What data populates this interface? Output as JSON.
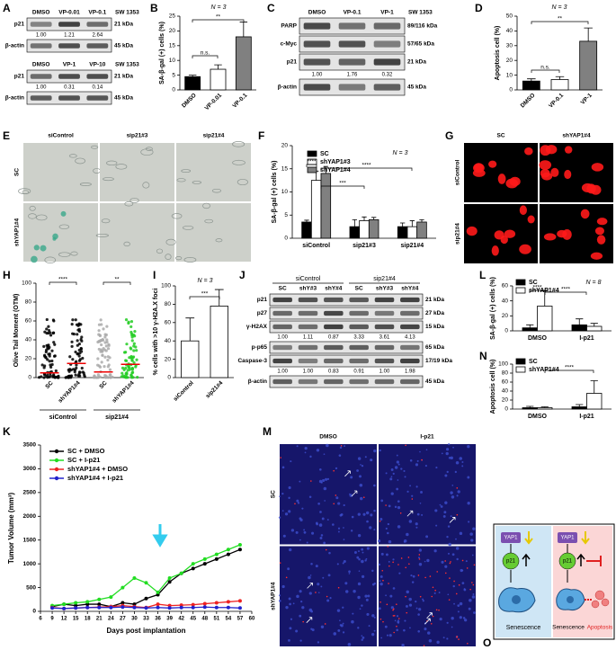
{
  "panel_a": {
    "letter": "A",
    "blots": [
      {
        "lanes": [
          "DMSO",
          "VP-0.01",
          "VP-0.1"
        ],
        "cell_line": "SW 1353",
        "rows": [
          {
            "name": "p21",
            "kda": "21 kDa",
            "quant": [
              "1.00",
              "1.21",
              "2.64"
            ]
          },
          {
            "name": "β-actin",
            "kda": "45 kDa"
          }
        ]
      },
      {
        "lanes": [
          "DMSO",
          "VP-1",
          "VP-10"
        ],
        "cell_line": "SW 1353",
        "rows": [
          {
            "name": "p21",
            "kda": "21 kDa",
            "quant": [
              "1.00",
              "0.31",
              "0.14"
            ]
          },
          {
            "name": "β-actin",
            "kda": "45 kDa"
          }
        ]
      }
    ]
  },
  "panel_b": {
    "letter": "B",
    "type": "bar",
    "note": "N = 3",
    "ylabel": "SA-β-gal (+) cells (%)",
    "categories": [
      "DMSO",
      "VP-0.01",
      "VP-0.1"
    ],
    "values": [
      4.5,
      7,
      18
    ],
    "errors": [
      0.5,
      1.5,
      5
    ],
    "colors": [
      "#000000",
      "#ffffff",
      "#808080"
    ],
    "ylim": [
      0,
      25
    ],
    "yticks": [
      0,
      5,
      10,
      15,
      20,
      25
    ],
    "annotations": [
      "n.s.",
      "**"
    ]
  },
  "panel_c": {
    "letter": "C",
    "blots": [
      {
        "lanes": [
          "DMSO",
          "VP-0.1",
          "VP-1"
        ],
        "cell_line": "SW 1353",
        "rows": [
          {
            "name": "PARP",
            "kda": "89/116 kDa"
          },
          {
            "name": "c-Myc",
            "kda": "57/65 kDa"
          },
          {
            "name": "p21",
            "kda": "21 kDa",
            "quant": [
              "1.00",
              "1.76",
              "0.32"
            ]
          },
          {
            "name": "β-actin",
            "kda": "45 kDa"
          }
        ]
      }
    ]
  },
  "panel_d": {
    "letter": "D",
    "type": "bar",
    "note": "N = 3",
    "ylabel": "Apoptosis cell (%)",
    "categories": [
      "DMSO",
      "VP-0.1",
      "VP-1"
    ],
    "values": [
      6,
      7,
      33
    ],
    "errors": [
      1.5,
      2,
      9
    ],
    "colors": [
      "#000000",
      "#ffffff",
      "#808080"
    ],
    "ylim": [
      0,
      50
    ],
    "yticks": [
      0,
      10,
      20,
      30,
      40,
      50
    ],
    "annotations": [
      "n.s.",
      "**"
    ]
  },
  "panel_e": {
    "letter": "E",
    "columns": [
      "siControl",
      "sip21#3",
      "sip21#4"
    ],
    "rows": [
      "SC",
      "shYAP1#4"
    ]
  },
  "panel_f": {
    "letter": "F",
    "type": "bar",
    "note": "N = 3",
    "ylabel": "SA-β-gal (+) cells (%)",
    "categories": [
      "siControl",
      "sip21#3",
      "sip21#4"
    ],
    "series": [
      {
        "name": "SC",
        "color": "#000000",
        "values": [
          3.5,
          2.5,
          2.5
        ],
        "errors": [
          0.4,
          1.5,
          0.8
        ]
      },
      {
        "name": "shYAP1#3",
        "color": "#ffffff",
        "values": [
          12.5,
          3.8,
          2.5
        ],
        "errors": [
          2,
          0.8,
          1.3
        ]
      },
      {
        "name": "shYAP1#4",
        "color": "#808080",
        "values": [
          14,
          4,
          3.5
        ],
        "errors": [
          1.5,
          0.5,
          0.5
        ]
      }
    ],
    "ylim": [
      0,
      20
    ],
    "yticks": [
      0,
      5,
      10,
      15,
      20
    ],
    "annotations": [
      "****",
      "***",
      "****"
    ]
  },
  "panel_g": {
    "letter": "G",
    "columns": [
      "SC",
      "shYAP1#4"
    ],
    "rows": [
      "siControl",
      "sip21#4"
    ]
  },
  "panel_h": {
    "letter": "H",
    "type": "dot_plot",
    "ylabel": "Olive Tail Moment (OTM)",
    "categories": [
      "SC",
      "shYAP1#4",
      "SC",
      "shYAP1#4"
    ],
    "groups": [
      "siControl",
      "sip21#4"
    ],
    "values": [
      5,
      15,
      6,
      14
    ],
    "colors": [
      "#000000",
      "#000000",
      "#aaaaaa",
      "#22cc22"
    ],
    "ylim": [
      0,
      100
    ],
    "yticks": [
      0,
      20,
      40,
      60,
      80,
      100
    ],
    "annotations": [
      "****",
      "**"
    ]
  },
  "panel_i": {
    "letter": "I",
    "type": "bar",
    "note": "N = 3",
    "ylabel": "% cells with >10 γ-H2A.X foci",
    "categories": [
      "siControl",
      "sip21#4"
    ],
    "values": [
      40,
      78
    ],
    "errors": [
      25,
      18
    ],
    "colors": [
      "#ffffff",
      "#ffffff"
    ],
    "ylim": [
      0,
      100
    ],
    "yticks": [
      0,
      20,
      40,
      60,
      80,
      100
    ],
    "annotations": [
      "***"
    ]
  },
  "panel_j": {
    "letter": "J",
    "blots": [
      {
        "groups": [
          "siControl",
          "sip21#4"
        ],
        "lanes": [
          "SC",
          "shY#3",
          "shY#4",
          "SC",
          "shY#3",
          "shY#4"
        ],
        "rows": [
          {
            "name": "p21",
            "kda": "21 kDa"
          },
          {
            "name": "p27",
            "kda": "27 kDa"
          },
          {
            "name": "γ-H2AX",
            "kda": "15 kDa",
            "quant": [
              "1.00",
              "1.11",
              "0.87",
              "3.33",
              "3.61",
              "4.13"
            ]
          },
          {
            "name": "p-p65",
            "kda": "65 kDa"
          },
          {
            "name": "Caspase-3",
            "kda": "17/19 kDa",
            "quant": [
              "1.00",
              "1.00",
              "0.83",
              "0.91",
              "1.00",
              "1.98"
            ]
          },
          {
            "name": "β-actin",
            "kda": "45 kDa"
          }
        ]
      }
    ]
  },
  "panel_k": {
    "letter": "K",
    "type": "line",
    "ylabel": "Tumor Volume (mm³)",
    "xlabel": "Days post implantation",
    "x": [
      9,
      12,
      15,
      18,
      21,
      24,
      27,
      30,
      33,
      36,
      39,
      42,
      45,
      48,
      51,
      54,
      57
    ],
    "series": [
      {
        "name": "SC + DMSO",
        "color": "#000000",
        "values": [
          100,
          150,
          120,
          150,
          150,
          100,
          180,
          150,
          270,
          350,
          620,
          800,
          900,
          1000,
          1100,
          1200,
          1300
        ]
      },
      {
        "name": "SC + I-p21",
        "color": "#22dd22",
        "values": [
          120,
          150,
          180,
          200,
          250,
          300,
          500,
          700,
          600,
          400,
          700,
          800,
          1000,
          1100,
          1200,
          1300,
          1400
        ]
      },
      {
        "name": "shYAP1#4 + DMSO",
        "color": "#ee2222",
        "values": [
          80,
          60,
          70,
          80,
          90,
          100,
          120,
          100,
          80,
          150,
          120,
          130,
          140,
          160,
          180,
          200,
          220
        ]
      },
      {
        "name": "shYAP1#4 + I-p21",
        "color": "#2222cc",
        "values": [
          70,
          60,
          70,
          80,
          80,
          80,
          90,
          80,
          70,
          80,
          70,
          80,
          80,
          90,
          80,
          80,
          70
        ]
      }
    ],
    "xlim": [
      6,
      60
    ],
    "xticks": [
      6,
      9,
      12,
      15,
      18,
      21,
      24,
      27,
      30,
      33,
      36,
      39,
      42,
      45,
      48,
      51,
      54,
      57,
      60
    ],
    "ylim": [
      0,
      3500
    ],
    "yticks": [
      0,
      500,
      1000,
      1500,
      2000,
      2500,
      3000,
      3500
    ]
  },
  "panel_l": {
    "letter": "L",
    "type": "bar",
    "note": "N = 8",
    "ylabel": "SA-β-gal (+) cells (%)",
    "categories": [
      "DMSO",
      "I-p21"
    ],
    "series": [
      {
        "name": "SC",
        "color": "#000000",
        "values": [
          4,
          8
        ],
        "errors": [
          4,
          8
        ]
      },
      {
        "name": "shYAP1#4",
        "color": "#ffffff",
        "values": [
          33,
          6
        ],
        "errors": [
          20,
          4
        ]
      }
    ],
    "ylim": [
      0,
      60
    ],
    "yticks": [
      0,
      20,
      40,
      60
    ],
    "annotations": [
      "****",
      "****"
    ]
  },
  "panel_m": {
    "letter": "M",
    "columns": [
      "DMSO",
      "I-p21"
    ],
    "rows": [
      "SC",
      "shYAP1#4"
    ]
  },
  "panel_n": {
    "letter": "N",
    "type": "bar",
    "ylabel": "Apoptosis cell (%)",
    "categories": [
      "DMSO",
      "I-p21"
    ],
    "series": [
      {
        "name": "SC",
        "color": "#000000",
        "values": [
          3,
          5
        ],
        "errors": [
          3,
          5
        ]
      },
      {
        "name": "shYAP1#4",
        "color": "#ffffff",
        "values": [
          3,
          35
        ],
        "errors": [
          2,
          28
        ]
      }
    ],
    "ylim": [
      0,
      100
    ],
    "yticks": [
      0,
      20,
      40,
      60,
      80,
      100
    ],
    "annotations": [
      "****"
    ]
  },
  "panel_o": {
    "letter": "O",
    "left": {
      "protein": "YAP1",
      "target": "p21",
      "outcome": "Senescence"
    },
    "right": {
      "protein": "YAP1",
      "target": "p21",
      "outcome": "Senescence",
      "outcome2": "Apoptosis"
    }
  }
}
